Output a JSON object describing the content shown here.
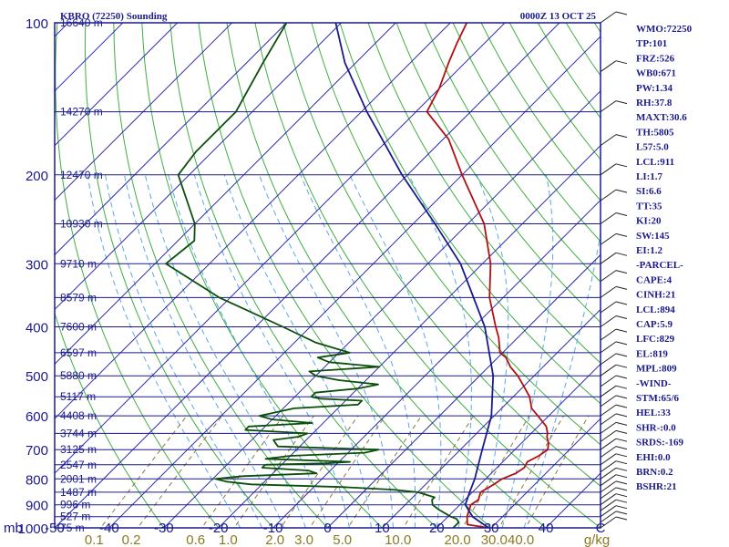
{
  "header": {
    "station": "KBRO (72250) Sounding",
    "time": "0000Z 13 OCT 25"
  },
  "indices": [
    "WMO:72250",
    "TP:101",
    "FRZ:526",
    "WB0:671",
    "PW:1.34",
    "RH:37.8",
    "MAXT:30.6",
    "TH:5805",
    "L57:5.0",
    "LCL:911",
    "LI:1.7",
    "SI:6.6",
    "TT:35",
    "KI:20",
    "SW:145",
    "EI:1.2",
    "-PARCEL-",
    "CAPE:4",
    "CINH:21",
    "LCL:894",
    "CAP:5.9",
    "LFC:829",
    "EL:819",
    "MPL:809",
    "-WIND-",
    "STM:65/6",
    "HEL:33",
    "SHR-:0.0",
    "SRDS:-169",
    "EHI:0.0",
    "BRN:0.2",
    "BSHR:21"
  ],
  "colors": {
    "frame": "#1a1a8c",
    "isobar": "#1a1a8c",
    "isotherm": "#2b2bb0",
    "dry_adiabat": "#3fae3f",
    "moist_adiabat": "#5aa8e6",
    "mixing_ratio": "#8a7a3a",
    "temperature": "#b01010",
    "dewpoint": "#0b4f0b",
    "parcel": "#1a1a8c",
    "wind_label": "#8a7a1e"
  },
  "chart_data": {
    "type": "line",
    "title": "",
    "ylabel": "mb",
    "xlabel": "",
    "ylim": [
      1000,
      100
    ],
    "xlim": [
      -50,
      50
    ],
    "skew_deg": 45,
    "pressure_ticks": [
      100,
      200,
      300,
      400,
      500,
      600,
      700,
      800,
      900,
      1000
    ],
    "temperature_ticks": [
      -50,
      -40,
      -30,
      -20,
      -10,
      0,
      10,
      20,
      30,
      40,
      50
    ],
    "temperature_tick_labels": [
      "-50",
      "-40",
      "-30",
      "-20",
      "-10",
      "0",
      "10",
      "20",
      "30",
      "40",
      "C"
    ],
    "mixing_ratio_labels": [
      "0.1",
      "0.2",
      "0.6",
      "1.0",
      "2.0",
      "3.0",
      "5.0",
      "10.0",
      "20.0",
      "30.0",
      "40.0",
      "g/kg"
    ],
    "mixing_ratio_values": [
      0.1,
      0.2,
      0.6,
      1.0,
      2.0,
      3.0,
      5.0,
      10.0,
      20.0,
      30.0,
      40.0
    ],
    "height_levels": [
      {
        "p": 100,
        "label": "16640 m"
      },
      {
        "p": 150,
        "label": "14270 m"
      },
      {
        "p": 200,
        "label": "12470 m"
      },
      {
        "p": 250,
        "label": "10930 m"
      },
      {
        "p": 300,
        "label": "9710 m"
      },
      {
        "p": 350,
        "label": "8579 m"
      },
      {
        "p": 400,
        "label": "7600 m"
      },
      {
        "p": 450,
        "label": "6597 m"
      },
      {
        "p": 500,
        "label": "5880 m"
      },
      {
        "p": 550,
        "label": "5117 m"
      },
      {
        "p": 600,
        "label": "4408 m"
      },
      {
        "p": 650,
        "label": "3744 m"
      },
      {
        "p": 700,
        "label": "3125 m"
      },
      {
        "p": 750,
        "label": "2547 m"
      },
      {
        "p": 800,
        "label": "2001 m"
      },
      {
        "p": 850,
        "label": "1487 m"
      },
      {
        "p": 900,
        "label": "996 m"
      },
      {
        "p": 950,
        "label": "527 m"
      },
      {
        "p": 1000,
        "label": "75 m"
      }
    ],
    "series": [
      {
        "id": "temperature",
        "points": [
          [
            1000,
            29.5
          ],
          [
            985,
            25
          ],
          [
            950,
            23.5
          ],
          [
            900,
            22
          ],
          [
            880,
            22.5
          ],
          [
            850,
            21.5
          ],
          [
            820,
            22.5
          ],
          [
            800,
            23
          ],
          [
            780,
            24.5
          ],
          [
            760,
            25
          ],
          [
            740,
            24.5
          ],
          [
            720,
            25.5
          ],
          [
            700,
            26
          ],
          [
            680,
            25
          ],
          [
            660,
            23.5
          ],
          [
            650,
            23
          ],
          [
            630,
            21.5
          ],
          [
            600,
            18
          ],
          [
            580,
            15.5
          ],
          [
            550,
            13
          ],
          [
            520,
            9.5
          ],
          [
            500,
            7
          ],
          [
            480,
            4
          ],
          [
            460,
            1.5
          ],
          [
            450,
            -0.5
          ],
          [
            420,
            -3.5
          ],
          [
            400,
            -6
          ],
          [
            350,
            -12.5
          ],
          [
            300,
            -18.5
          ],
          [
            250,
            -27
          ],
          [
            200,
            -40
          ],
          [
            170,
            -49
          ],
          [
            150,
            -58
          ],
          [
            135,
            -60
          ],
          [
            120,
            -63
          ],
          [
            110,
            -65
          ],
          [
            100,
            -67
          ]
        ]
      },
      {
        "id": "dewpoint",
        "points": [
          [
            1000,
            23
          ],
          [
            990,
            23
          ],
          [
            975,
            23
          ],
          [
            960,
            22
          ],
          [
            950,
            20.5
          ],
          [
            920,
            17
          ],
          [
            900,
            15
          ],
          [
            880,
            14
          ],
          [
            870,
            14
          ],
          [
            850,
            10
          ],
          [
            840,
            5
          ],
          [
            830,
            -5
          ],
          [
            820,
            -22
          ],
          [
            810,
            -27
          ],
          [
            800,
            -29.5
          ],
          [
            790,
            -25
          ],
          [
            780,
            -12
          ],
          [
            770,
            -14
          ],
          [
            760,
            -23
          ],
          [
            750,
            -23
          ],
          [
            745,
            -12
          ],
          [
            740,
            -8
          ],
          [
            730,
            -24
          ],
          [
            720,
            -20
          ],
          [
            710,
            -7
          ],
          [
            700,
            -5
          ],
          [
            690,
            -24
          ],
          [
            680,
            -25
          ],
          [
            670,
            -26
          ],
          [
            660,
            -22
          ],
          [
            650,
            -21
          ],
          [
            640,
            -33
          ],
          [
            630,
            -33
          ],
          [
            620,
            -22
          ],
          [
            610,
            -30
          ],
          [
            600,
            -33
          ],
          [
            580,
            -28
          ],
          [
            570,
            -17
          ],
          [
            560,
            -17
          ],
          [
            555,
            -25
          ],
          [
            550,
            -27
          ],
          [
            540,
            -27
          ],
          [
            530,
            -20
          ],
          [
            520,
            -17
          ],
          [
            510,
            -25
          ],
          [
            500,
            -30
          ],
          [
            490,
            -32
          ],
          [
            480,
            -20
          ],
          [
            470,
            -30
          ],
          [
            460,
            -33
          ],
          [
            450,
            -28
          ],
          [
            430,
            -36
          ],
          [
            400,
            -45
          ],
          [
            350,
            -62
          ],
          [
            300,
            -78
          ],
          [
            270,
            -77
          ],
          [
            250,
            -80
          ],
          [
            200,
            -92
          ],
          [
            180,
            -93
          ],
          [
            150,
            -93
          ],
          [
            120,
            -97
          ],
          [
            100,
            -100
          ]
        ]
      },
      {
        "id": "parcel",
        "points": [
          [
            1000,
            29.5
          ],
          [
            950,
            24.5
          ],
          [
            900,
            21
          ],
          [
            850,
            19.5
          ],
          [
            800,
            18
          ],
          [
            700,
            14
          ],
          [
            600,
            9.5
          ],
          [
            500,
            2.5
          ],
          [
            400,
            -8
          ],
          [
            300,
            -24
          ],
          [
            250,
            -36
          ],
          [
            200,
            -51
          ],
          [
            150,
            -69
          ],
          [
            120,
            -82
          ],
          [
            100,
            -91
          ]
        ]
      }
    ]
  }
}
